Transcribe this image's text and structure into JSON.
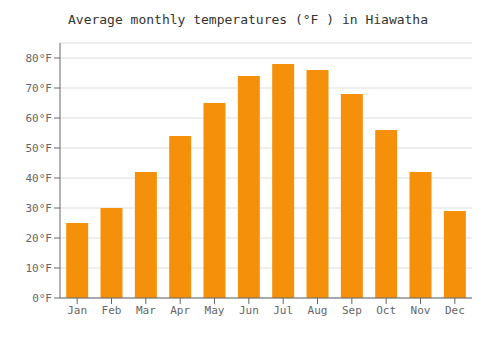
{
  "chart_data": {
    "type": "bar",
    "title": "Average monthly temperatures (°F ) in Hiawatha",
    "categories": [
      "Jan",
      "Feb",
      "Mar",
      "Apr",
      "May",
      "Jun",
      "Jul",
      "Aug",
      "Sep",
      "Oct",
      "Nov",
      "Dec"
    ],
    "values": [
      25,
      30,
      42,
      54,
      65,
      74,
      78,
      76,
      68,
      56,
      42,
      29
    ],
    "color": "#F5900A",
    "ylim": [
      0,
      85
    ],
    "yticks": [
      {
        "value": 0,
        "label": "0°F"
      },
      {
        "value": 10,
        "label": "10°F"
      },
      {
        "value": 20,
        "label": "20°F"
      },
      {
        "value": 30,
        "label": "30°F"
      },
      {
        "value": 40,
        "label": "40°F"
      },
      {
        "value": 50,
        "label": "50°F"
      },
      {
        "value": 60,
        "label": "60°F"
      },
      {
        "value": 70,
        "label": "70°F"
      },
      {
        "value": 80,
        "label": "80°F"
      }
    ],
    "grid": true
  }
}
